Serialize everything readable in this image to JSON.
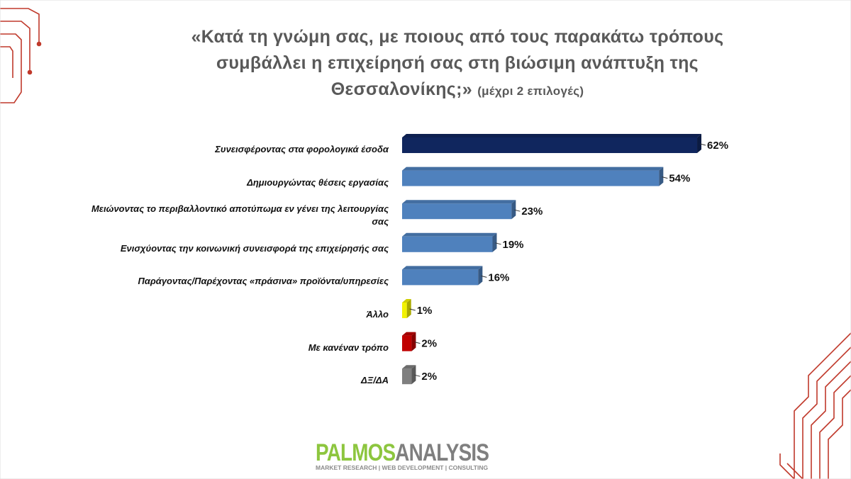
{
  "chart_data": {
    "type": "bar",
    "orientation": "horizontal",
    "title": "«Κατά τη γνώμη σας, με ποιους από τους παρακάτω τρόπους συμβάλλει η επιχείρησή σας στη βιώσιμη ανάπτυξη της Θεσσαλονίκης;»",
    "subtitle": "(μέχρι 2 επιλογές)",
    "categories": [
      "Συνεισφέροντας στα φορολογικά έσοδα",
      "Δημιουργώντας θέσεις εργασίας",
      "Μειώνοντας το περιβαλλοντικό αποτύπωμα εν γένει της λειτουργίας σας",
      "Ενισχύοντας την κοινωνική συνεισφορά της επιχείρησής σας",
      "Παράγοντας/Παρέχοντας «πράσινα» προϊόντα/υπηρεσίες",
      "Άλλο",
      "Με κανέναν τρόπο",
      "ΔΞ/ΔΑ"
    ],
    "values": [
      62,
      54,
      23,
      19,
      16,
      1,
      2,
      2
    ],
    "value_labels": [
      "62%",
      "54%",
      "23%",
      "19%",
      "16%",
      "1%",
      "2%",
      "2%"
    ],
    "colors": [
      "#10265e",
      "#4f81bd",
      "#4f81bd",
      "#4f81bd",
      "#4f81bd",
      "#f2f200",
      "#c00000",
      "#7f7f7f"
    ]
  },
  "logo": {
    "name_left": "PALMOS",
    "name_right": "ANALYSIS",
    "tagline": "MARKET RESEARCH | WEB DEVELOPMENT | CONSULTING"
  }
}
